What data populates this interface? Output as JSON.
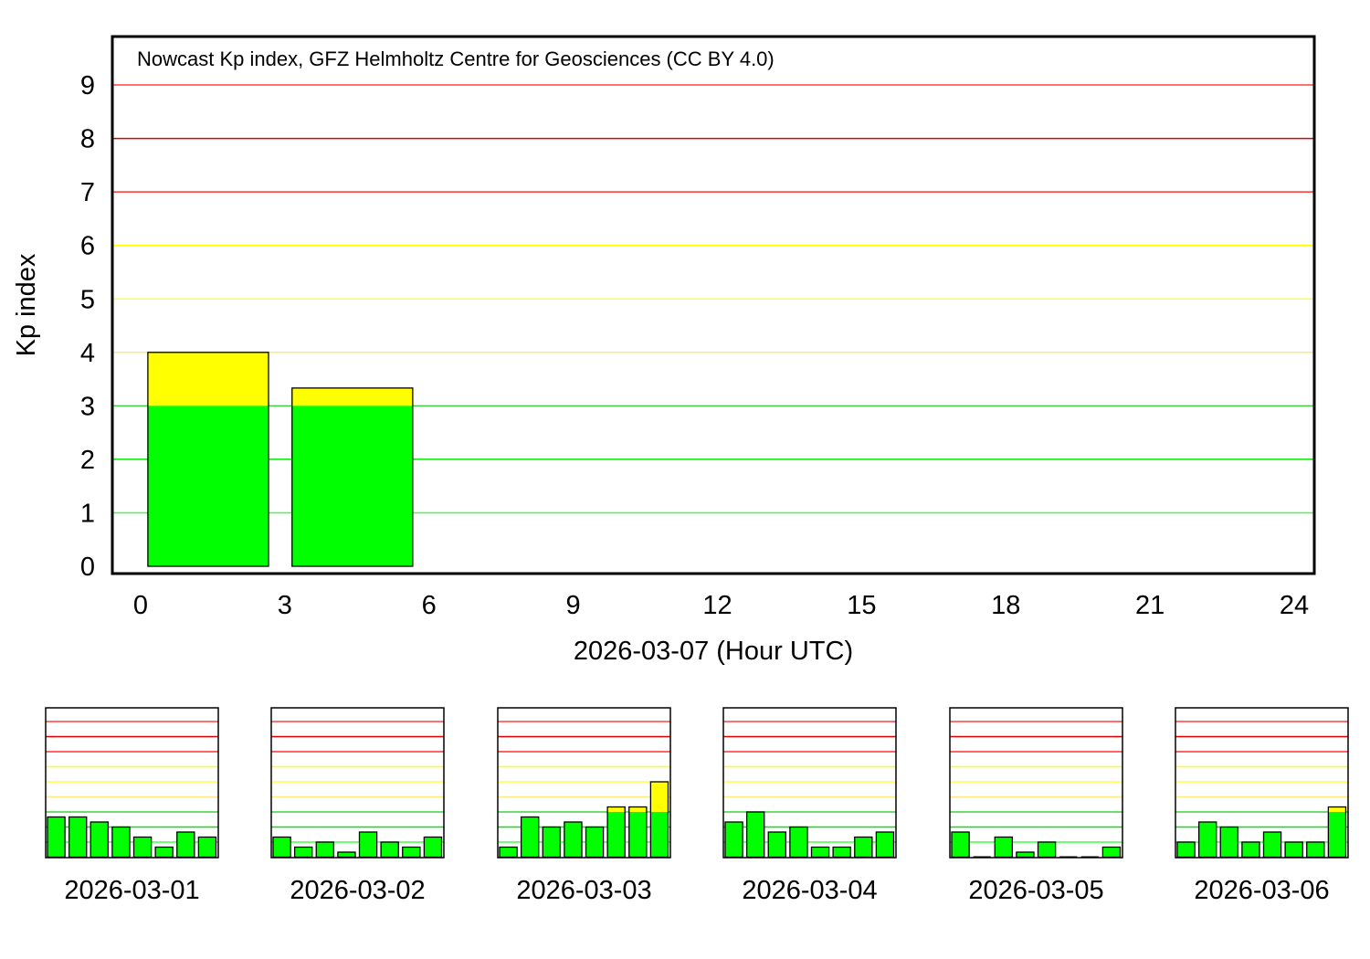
{
  "chart_data": [
    {
      "type": "bar",
      "title": "Nowcast Kp index, GFZ Helmholtz Centre for Geosciences (CC BY 4.0)",
      "xlabel": "2026-03-07 (Hour UTC)",
      "ylabel": "Kp index",
      "xlim": [
        0,
        24
      ],
      "ylim": [
        0,
        9
      ],
      "xticks": [
        "0",
        "3",
        "6",
        "9",
        "12",
        "15",
        "18",
        "21",
        "24"
      ],
      "yticks": [
        "0",
        "1",
        "2",
        "3",
        "4",
        "5",
        "6",
        "7",
        "8",
        "9"
      ],
      "grid": true,
      "x": [
        0,
        3
      ],
      "values": [
        4.0,
        3.333
      ]
    },
    {
      "type": "bar",
      "xlabel": "2026-03-01",
      "x": [
        0,
        3,
        6,
        9,
        12,
        15,
        18,
        21
      ],
      "values": [
        2.667,
        2.667,
        2.333,
        2.0,
        1.333,
        0.667,
        1.667,
        1.333
      ]
    },
    {
      "type": "bar",
      "xlabel": "2026-03-02",
      "x": [
        0,
        3,
        6,
        9,
        12,
        15,
        18,
        21
      ],
      "values": [
        1.333,
        0.667,
        1.0,
        0.333,
        1.667,
        1.0,
        0.667,
        1.333
      ]
    },
    {
      "type": "bar",
      "xlabel": "2026-03-03",
      "x": [
        0,
        3,
        6,
        9,
        12,
        15,
        18,
        21
      ],
      "values": [
        0.667,
        2.667,
        2.0,
        2.333,
        2.0,
        3.333,
        3.333,
        5.0
      ]
    },
    {
      "type": "bar",
      "xlabel": "2026-03-04",
      "x": [
        0,
        3,
        6,
        9,
        12,
        15,
        18,
        21
      ],
      "values": [
        2.333,
        3.0,
        1.667,
        2.0,
        0.667,
        0.667,
        1.333,
        1.667
      ]
    },
    {
      "type": "bar",
      "xlabel": "2026-03-05",
      "x": [
        0,
        3,
        6,
        9,
        12,
        15,
        18,
        21
      ],
      "values": [
        1.667,
        0,
        1.333,
        0.333,
        1.0,
        0,
        0,
        0.667
      ]
    },
    {
      "type": "bar",
      "xlabel": "2026-03-06",
      "x": [
        0,
        3,
        6,
        9,
        12,
        15,
        18,
        21
      ],
      "values": [
        1.0,
        2.333,
        2.0,
        1.0,
        1.667,
        1.0,
        1.0,
        3.333
      ]
    }
  ],
  "colors": {
    "low": "#00ff00",
    "moderate": "#ffff00",
    "high": "#ff0000",
    "grid": [
      "#40ff40",
      "#00e800",
      "#40d040",
      "#ffe880",
      "#ffff40",
      "#ffff00",
      "#ff3030",
      "#e00000",
      "#ff4040"
    ]
  }
}
